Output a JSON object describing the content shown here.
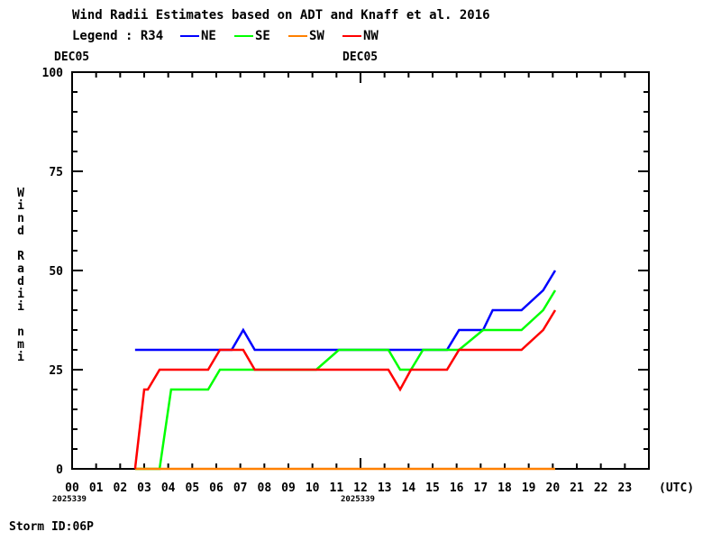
{
  "chart_data": {
    "type": "line",
    "title": "Wind Radii Estimates based on ADT and Knaff et al. 2016",
    "legend": {
      "prefix": "Legend : R34",
      "placement": "top"
    },
    "xlabel": "(UTC)",
    "ylabel": "Wind Radii nmi",
    "date_labels": [
      {
        "hour": 0,
        "date": "DEC05",
        "julian": "2025339"
      },
      {
        "hour": 12,
        "date": "DEC05",
        "julian": "2025339"
      }
    ],
    "xlim": [
      0,
      24
    ],
    "ylim": [
      0,
      100
    ],
    "x_ticks": [
      "00",
      "01",
      "02",
      "03",
      "04",
      "05",
      "06",
      "07",
      "08",
      "09",
      "10",
      "11",
      "12",
      "13",
      "14",
      "15",
      "16",
      "17",
      "18",
      "19",
      "20",
      "21",
      "22",
      "23"
    ],
    "y_ticks": [
      0,
      25,
      50,
      75,
      100
    ],
    "grid": false,
    "series": [
      {
        "name": "NE",
        "color": "#0000ff",
        "x": [
          2.62,
          6.64,
          7.12,
          7.6,
          15.6,
          16.1,
          17.1,
          17.5,
          18.7,
          19.6,
          20.1
        ],
        "y": [
          30,
          30,
          35,
          30,
          30,
          35,
          35,
          40,
          40,
          45,
          50
        ]
      },
      {
        "name": "SE",
        "color": "#00ff00",
        "x": [
          2.62,
          3.64,
          4.12,
          5.66,
          6.15,
          10.16,
          11.1,
          13.16,
          13.65,
          14.1,
          14.6,
          16.1,
          17.1,
          18.7,
          19.6,
          20.1
        ],
        "y": [
          0,
          0,
          20,
          20,
          25,
          25,
          30,
          30,
          25,
          25,
          30,
          30,
          35,
          35,
          40,
          45
        ]
      },
      {
        "name": "SW",
        "color": "#ff8000",
        "x": [
          2.62,
          20.1
        ],
        "y": [
          0,
          0
        ]
      },
      {
        "name": "NW",
        "color": "#ff0000",
        "x": [
          2.62,
          3.0,
          3.15,
          3.64,
          5.66,
          6.15,
          7.12,
          7.6,
          13.16,
          13.65,
          14.1,
          15.6,
          16.1,
          18.7,
          19.6,
          20.1
        ],
        "y": [
          0,
          20,
          20,
          25,
          25,
          30,
          30,
          25,
          25,
          20,
          25,
          25,
          30,
          30,
          35,
          40
        ]
      }
    ]
  },
  "footer": {
    "storm_id": "Storm ID:06P"
  }
}
